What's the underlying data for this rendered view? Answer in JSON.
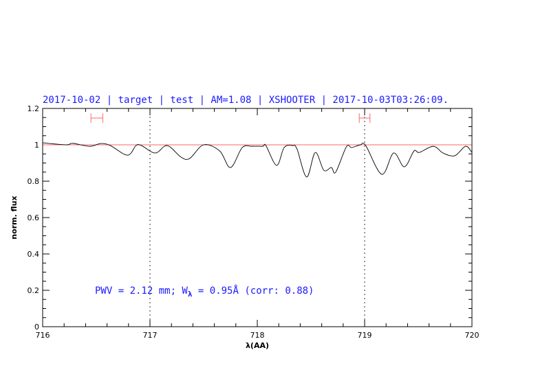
{
  "chart_data": {
    "type": "line",
    "title": "2017-10-02 | target | test | AM=1.08 | XSHOOTER | 2017-10-03T03:26:09.",
    "xlabel": "λ(AA)",
    "ylabel": "norm. flux",
    "xlim": [
      716,
      720
    ],
    "ylim": [
      0,
      1.2
    ],
    "xticks": [
      "716",
      "717",
      "718",
      "719",
      "720"
    ],
    "yticks": [
      "0",
      "0.2",
      "0.4",
      "0.6",
      "0.8",
      "1",
      "1.2"
    ],
    "x_minor_step": 0.2,
    "y_minor_step": 0.05,
    "grid": false,
    "reference_line": {
      "y": 1.0,
      "color": "#ff6666"
    },
    "vertical_markers": [
      717,
      719
    ],
    "ranges": [
      {
        "x": [
          716.45,
          716.56
        ],
        "y": 1.147,
        "color": "#ff6666"
      },
      {
        "x": [
          718.95,
          719.05
        ],
        "y": 1.147,
        "color": "#ff6666"
      }
    ],
    "series": [
      {
        "color": "#000000",
        "x": [
          716.0,
          716.22,
          716.28,
          716.44,
          716.54,
          716.63,
          716.79,
          716.87,
          716.92,
          717.05,
          717.16,
          717.29,
          717.37,
          717.5,
          717.65,
          717.75,
          717.86,
          717.95,
          718.05,
          718.08,
          718.18,
          718.25,
          718.33,
          718.37,
          718.46,
          718.54,
          718.62,
          718.69,
          718.73,
          718.83,
          718.88,
          718.96,
          719.01,
          719.16,
          719.27,
          719.37,
          719.46,
          719.51,
          719.64,
          719.73,
          719.84,
          719.94,
          720.0
        ],
        "y": [
          1.011,
          1.0,
          1.008,
          0.992,
          1.007,
          0.996,
          0.943,
          0.996,
          0.996,
          0.955,
          0.996,
          0.932,
          0.925,
          1.0,
          0.966,
          0.875,
          0.985,
          0.992,
          0.992,
          0.996,
          0.887,
          0.985,
          0.996,
          0.977,
          0.823,
          0.958,
          0.86,
          0.875,
          0.849,
          0.989,
          0.985,
          1.0,
          0.996,
          0.838,
          0.955,
          0.879,
          0.966,
          0.958,
          0.992,
          0.955,
          0.94,
          0.992,
          0.958
        ]
      }
    ],
    "annotation": {
      "prefix": "PWV = 2.12 mm; W",
      "subscript": "λ",
      "suffix": " = 0.95Å (corr: 0.88)",
      "color": "#1a1aff"
    }
  }
}
